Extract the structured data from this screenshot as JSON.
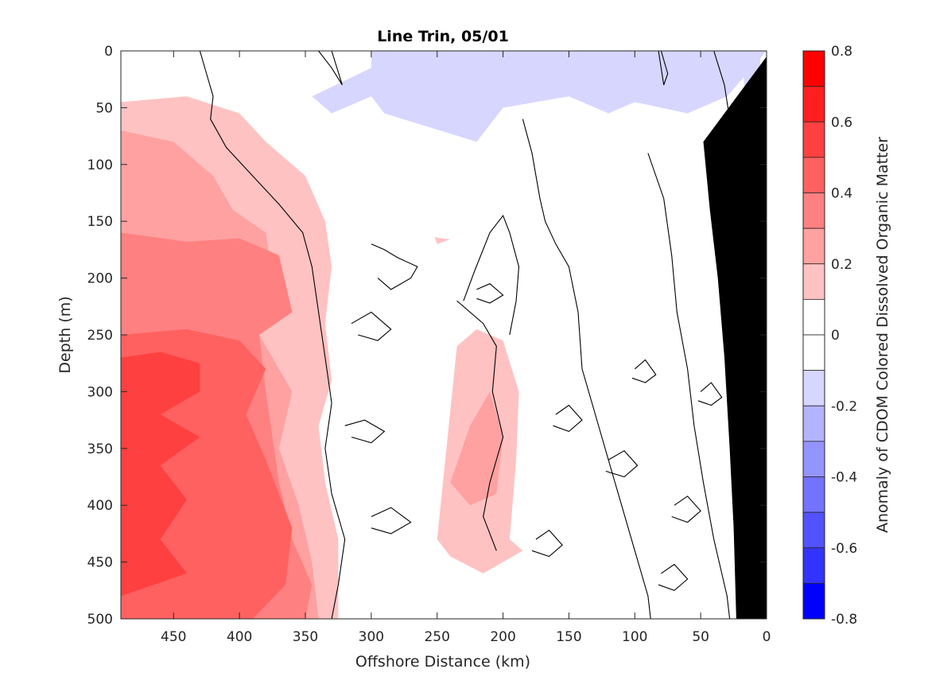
{
  "chart_data": {
    "type": "heatmap",
    "title": "Line Trin, 05/01",
    "xlabel": "Offshore Distance (km)",
    "ylabel": "Depth (m)",
    "colorbar_label": "Anomaly of CDOM Colored Dissolved Organic Matter",
    "xlim": [
      490,
      0
    ],
    "ylim": [
      0,
      500
    ],
    "y_reversed": true,
    "x_reversed": true,
    "x_ticks": [
      450,
      400,
      350,
      300,
      250,
      200,
      150,
      100,
      50,
      0
    ],
    "y_ticks": [
      0,
      50,
      100,
      150,
      200,
      250,
      300,
      350,
      400,
      450,
      500
    ],
    "clim": [
      -0.8,
      0.8
    ],
    "colorbar_ticks": [
      0.8,
      0.6,
      0.4,
      0.2,
      0,
      -0.2,
      -0.4,
      -0.6,
      -0.8
    ],
    "colorbar_levels": [
      {
        "from": 0.7,
        "to": 0.8,
        "color": "#ff0000"
      },
      {
        "from": 0.6,
        "to": 0.7,
        "color": "#ff1f1f"
      },
      {
        "from": 0.5,
        "to": 0.6,
        "color": "#ff4040"
      },
      {
        "from": 0.4,
        "to": 0.5,
        "color": "#ff6161"
      },
      {
        "from": 0.3,
        "to": 0.4,
        "color": "#ff8080"
      },
      {
        "from": 0.2,
        "to": 0.3,
        "color": "#ffa1a1"
      },
      {
        "from": 0.1,
        "to": 0.2,
        "color": "#ffc2c2"
      },
      {
        "from": 0.0,
        "to": 0.1,
        "color": "#ffffff"
      },
      {
        "from": -0.1,
        "to": 0.0,
        "color": "#ffffff"
      },
      {
        "from": -0.2,
        "to": -0.1,
        "color": "#d6d6ff"
      },
      {
        "from": -0.3,
        "to": -0.2,
        "color": "#b3b3ff"
      },
      {
        "from": -0.4,
        "to": -0.3,
        "color": "#9494ff"
      },
      {
        "from": -0.5,
        "to": -0.4,
        "color": "#7373ff"
      },
      {
        "from": -0.6,
        "to": -0.5,
        "color": "#5252ff"
      },
      {
        "from": -0.7,
        "to": -0.6,
        "color": "#3333ff"
      },
      {
        "from": -0.8,
        "to": -0.7,
        "color": "#0000ff"
      }
    ],
    "regions": [
      {
        "level": 0.15,
        "points": [
          [
            490,
            45
          ],
          [
            440,
            40
          ],
          [
            400,
            55
          ],
          [
            380,
            80
          ],
          [
            350,
            110
          ],
          [
            335,
            150
          ],
          [
            330,
            190
          ],
          [
            335,
            240
          ],
          [
            330,
            290
          ],
          [
            340,
            330
          ],
          [
            335,
            380
          ],
          [
            325,
            430
          ],
          [
            325,
            500
          ],
          [
            490,
            500
          ]
        ]
      },
      {
        "level": 0.25,
        "points": [
          [
            490,
            70
          ],
          [
            450,
            80
          ],
          [
            420,
            110
          ],
          [
            405,
            140
          ],
          [
            380,
            160
          ],
          [
            375,
            200
          ],
          [
            385,
            250
          ],
          [
            360,
            300
          ],
          [
            370,
            350
          ],
          [
            355,
            400
          ],
          [
            345,
            450
          ],
          [
            340,
            500
          ],
          [
            490,
            500
          ]
        ]
      },
      {
        "level": 0.35,
        "points": [
          [
            490,
            160
          ],
          [
            440,
            168
          ],
          [
            400,
            165
          ],
          [
            370,
            180
          ],
          [
            360,
            230
          ],
          [
            385,
            250
          ],
          [
            380,
            300
          ],
          [
            375,
            340
          ],
          [
            370,
            380
          ],
          [
            360,
            430
          ],
          [
            345,
            470
          ],
          [
            350,
            500
          ],
          [
            490,
            500
          ]
        ]
      },
      {
        "level": 0.45,
        "points": [
          [
            490,
            250
          ],
          [
            440,
            245
          ],
          [
            400,
            255
          ],
          [
            380,
            280
          ],
          [
            395,
            320
          ],
          [
            380,
            360
          ],
          [
            360,
            420
          ],
          [
            365,
            470
          ],
          [
            390,
            500
          ],
          [
            490,
            500
          ]
        ]
      },
      {
        "level": 0.55,
        "points": [
          [
            490,
            270
          ],
          [
            460,
            265
          ],
          [
            430,
            275
          ],
          [
            430,
            300
          ],
          [
            460,
            320
          ],
          [
            430,
            340
          ],
          [
            460,
            365
          ],
          [
            440,
            395
          ],
          [
            460,
            430
          ],
          [
            440,
            460
          ],
          [
            490,
            480
          ]
        ]
      },
      {
        "level": 0.15,
        "points": [
          [
            250,
            430
          ],
          [
            235,
            260
          ],
          [
            220,
            245
          ],
          [
            200,
            255
          ],
          [
            188,
            300
          ],
          [
            190,
            360
          ],
          [
            195,
            430
          ],
          [
            185,
            440
          ],
          [
            215,
            460
          ],
          [
            240,
            445
          ]
        ]
      },
      {
        "level": 0.25,
        "points": [
          [
            240,
            380
          ],
          [
            225,
            330
          ],
          [
            210,
            300
          ],
          [
            200,
            340
          ],
          [
            205,
            390
          ],
          [
            225,
            400
          ]
        ]
      },
      {
        "level": 0.15,
        "points": [
          [
            252,
            164
          ],
          [
            240,
            166
          ],
          [
            250,
            170
          ]
        ]
      },
      {
        "level": -0.15,
        "points": [
          [
            410,
            0
          ],
          [
            300,
            0
          ],
          [
            300,
            15
          ],
          [
            345,
            40
          ],
          [
            330,
            55
          ],
          [
            310,
            45
          ],
          [
            300,
            40
          ],
          [
            290,
            55
          ],
          [
            220,
            80
          ],
          [
            200,
            50
          ],
          [
            150,
            40
          ],
          [
            120,
            55
          ],
          [
            100,
            45
          ],
          [
            60,
            55
          ],
          [
            30,
            40
          ],
          [
            0,
            0
          ]
        ]
      },
      {
        "level": -0.15,
        "points": [
          [
            18,
            0
          ],
          [
            5,
            0
          ],
          [
            3,
            80
          ],
          [
            10,
            150
          ],
          [
            15,
            90
          ]
        ]
      }
    ],
    "contour_zero": [
      [
        [
          430,
          0
        ],
        [
          425,
          20
        ],
        [
          420,
          40
        ],
        [
          422,
          60
        ],
        [
          410,
          85
        ],
        [
          390,
          110
        ],
        [
          370,
          135
        ],
        [
          352,
          160
        ],
        [
          345,
          190
        ],
        [
          340,
          230
        ],
        [
          335,
          270
        ],
        [
          330,
          310
        ],
        [
          335,
          350
        ],
        [
          330,
          390
        ],
        [
          320,
          430
        ],
        [
          325,
          470
        ],
        [
          330,
          500
        ]
      ],
      [
        [
          185,
          60
        ],
        [
          178,
          90
        ],
        [
          172,
          130
        ],
        [
          168,
          150
        ],
        [
          160,
          170
        ],
        [
          150,
          190
        ],
        [
          143,
          230
        ],
        [
          140,
          280
        ],
        [
          130,
          320
        ],
        [
          120,
          360
        ],
        [
          110,
          400
        ],
        [
          100,
          440
        ],
        [
          90,
          480
        ],
        [
          88,
          500
        ]
      ],
      [
        [
          230,
          220
        ],
        [
          222,
          195
        ],
        [
          210,
          160
        ],
        [
          200,
          145
        ],
        [
          195,
          160
        ],
        [
          188,
          190
        ],
        [
          190,
          220
        ],
        [
          195,
          250
        ]
      ],
      [
        [
          235,
          220
        ],
        [
          215,
          240
        ],
        [
          205,
          260
        ],
        [
          208,
          300
        ],
        [
          200,
          340
        ],
        [
          210,
          380
        ],
        [
          215,
          410
        ],
        [
          205,
          440
        ]
      ],
      [
        [
          90,
          90
        ],
        [
          78,
          130
        ],
        [
          72,
          180
        ],
        [
          68,
          230
        ],
        [
          60,
          280
        ],
        [
          55,
          330
        ],
        [
          48,
          380
        ],
        [
          40,
          430
        ],
        [
          30,
          480
        ],
        [
          28,
          500
        ]
      ],
      [
        [
          340,
          0
        ],
        [
          330,
          15
        ],
        [
          322,
          30
        ],
        [
          330,
          0
        ]
      ],
      [
        [
          80,
          0
        ],
        [
          75,
          20
        ],
        [
          78,
          30
        ],
        [
          82,
          0
        ]
      ],
      [
        [
          40,
          0
        ],
        [
          32,
          30
        ],
        [
          28,
          60
        ],
        [
          22,
          100
        ],
        [
          18,
          130
        ],
        [
          12,
          180
        ],
        [
          8,
          220
        ]
      ],
      [
        [
          300,
          170
        ],
        [
          290,
          175
        ],
        [
          280,
          182
        ],
        [
          265,
          190
        ],
        [
          270,
          200
        ],
        [
          285,
          210
        ],
        [
          295,
          200
        ]
      ],
      [
        [
          315,
          240
        ],
        [
          300,
          230
        ],
        [
          285,
          245
        ],
        [
          295,
          255
        ],
        [
          310,
          250
        ]
      ],
      [
        [
          320,
          330
        ],
        [
          305,
          325
        ],
        [
          290,
          335
        ],
        [
          300,
          345
        ],
        [
          315,
          340
        ]
      ],
      [
        [
          300,
          410
        ],
        [
          285,
          402
        ],
        [
          270,
          415
        ],
        [
          285,
          425
        ],
        [
          300,
          420
        ]
      ],
      [
        [
          160,
          320
        ],
        [
          150,
          312
        ],
        [
          140,
          325
        ],
        [
          150,
          335
        ],
        [
          162,
          330
        ]
      ],
      [
        [
          120,
          360
        ],
        [
          108,
          352
        ],
        [
          98,
          365
        ],
        [
          108,
          375
        ],
        [
          122,
          370
        ]
      ],
      [
        [
          175,
          430
        ],
        [
          165,
          422
        ],
        [
          155,
          435
        ],
        [
          165,
          445
        ],
        [
          178,
          440
        ]
      ],
      [
        [
          70,
          400
        ],
        [
          60,
          392
        ],
        [
          50,
          405
        ],
        [
          60,
          415
        ],
        [
          72,
          410
        ]
      ],
      [
        [
          80,
          460
        ],
        [
          70,
          452
        ],
        [
          60,
          465
        ],
        [
          70,
          475
        ],
        [
          82,
          470
        ]
      ],
      [
        [
          220,
          210
        ],
        [
          210,
          205
        ],
        [
          200,
          215
        ],
        [
          210,
          222
        ],
        [
          220,
          218
        ]
      ],
      [
        [
          50,
          300
        ],
        [
          42,
          292
        ],
        [
          34,
          305
        ],
        [
          42,
          312
        ],
        [
          52,
          308
        ]
      ],
      [
        [
          100,
          280
        ],
        [
          92,
          272
        ],
        [
          84,
          285
        ],
        [
          92,
          292
        ],
        [
          102,
          288
        ]
      ]
    ],
    "land_polygon": [
      [
        0,
        5
      ],
      [
        0,
        500
      ],
      [
        23,
        500
      ],
      [
        25,
        420
      ],
      [
        28,
        350
      ],
      [
        32,
        270
      ],
      [
        37,
        200
      ],
      [
        43,
        140
      ],
      [
        48,
        80
      ]
    ],
    "grid": false,
    "legend": "none",
    "colorbar_position": "right"
  }
}
